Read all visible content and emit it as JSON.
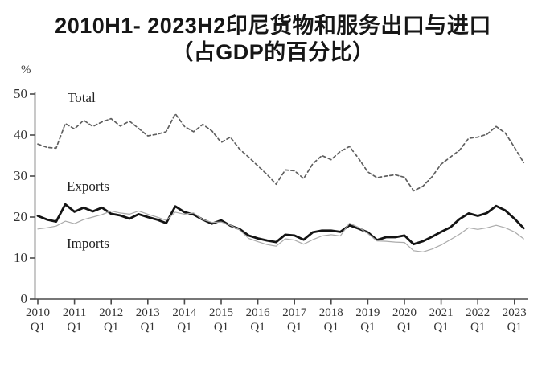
{
  "title": {
    "line1": "2010H1- 2023H2印尼货物和服务出口与进口",
    "line2": "（占GDP的百分比）"
  },
  "chart_data": {
    "type": "line",
    "title": "2010H1- 2023H2印尼货物和服务出口与进口（占GDP的百分比）",
    "xlabel": "",
    "ylabel": "%",
    "ylim": [
      0,
      50
    ],
    "y_ticks": [
      0,
      10,
      20,
      30,
      40,
      50
    ],
    "x_years": [
      "2010",
      "2011",
      "2012",
      "2013",
      "2014",
      "2015",
      "2016",
      "2017",
      "2018",
      "2019",
      "2020",
      "2021",
      "2022",
      "2023"
    ],
    "x_sub_label": "Q1",
    "x_frequency": "quarterly",
    "x_range": [
      "2010 Q1",
      "2023 Q2"
    ],
    "grid": false,
    "legend_position": "inline-labels",
    "series": [
      {
        "name": "Total",
        "style": "dashed",
        "color": "#5f5f5f",
        "width": 1.7,
        "values": [
          37.8,
          37.0,
          36.8,
          42.8,
          41.5,
          43.6,
          42.1,
          43.2,
          44.0,
          42.2,
          43.4,
          41.6,
          39.8,
          40.2,
          40.8,
          45.2,
          42.1,
          40.8,
          42.6,
          41.0,
          38.2,
          39.5,
          36.6,
          34.6,
          32.5,
          30.4,
          28.0,
          31.5,
          31.3,
          29.4,
          33.0,
          35.0,
          34.0,
          36.0,
          37.2,
          34.3,
          31.0,
          29.6,
          30.0,
          30.3,
          29.7,
          26.4,
          27.5,
          29.8,
          32.9,
          34.6,
          36.3,
          39.2,
          39.5,
          40.2,
          42.1,
          40.5,
          37.0,
          33.3
        ]
      },
      {
        "name": "Exports",
        "style": "solid",
        "color": "#141414",
        "width": 2.8,
        "values": [
          20.3,
          19.4,
          18.9,
          23.1,
          21.3,
          22.3,
          21.4,
          22.3,
          20.8,
          20.4,
          19.6,
          20.7,
          20.0,
          19.4,
          18.5,
          22.6,
          21.2,
          20.6,
          19.4,
          18.4,
          19.2,
          17.9,
          17.1,
          15.5,
          14.8,
          14.3,
          13.9,
          15.7,
          15.5,
          14.5,
          16.3,
          16.7,
          16.7,
          16.4,
          18.0,
          17.2,
          16.3,
          14.4,
          15.1,
          15.1,
          15.5,
          13.4,
          14.1,
          15.2,
          16.4,
          17.5,
          19.5,
          20.9,
          20.3,
          21.0,
          22.7,
          21.6,
          19.6,
          17.3
        ]
      },
      {
        "name": "Imports",
        "style": "solid",
        "color": "#ababab",
        "width": 1.2,
        "values": [
          17.1,
          17.4,
          17.8,
          19.0,
          18.4,
          19.4,
          20.0,
          20.6,
          21.5,
          21.0,
          20.7,
          21.5,
          20.7,
          20.0,
          19.2,
          21.2,
          20.7,
          21.0,
          19.4,
          18.7,
          18.8,
          18.0,
          16.9,
          14.8,
          14.0,
          13.3,
          12.9,
          14.7,
          14.4,
          13.4,
          14.5,
          15.4,
          15.7,
          15.4,
          18.5,
          17.5,
          16.0,
          14.2,
          14.1,
          13.9,
          13.8,
          11.8,
          11.5,
          12.2,
          13.2,
          14.5,
          15.8,
          17.4,
          17.0,
          17.4,
          18.0,
          17.4,
          16.4,
          14.7
        ]
      }
    ],
    "axis_color": "#4a4a4a"
  }
}
